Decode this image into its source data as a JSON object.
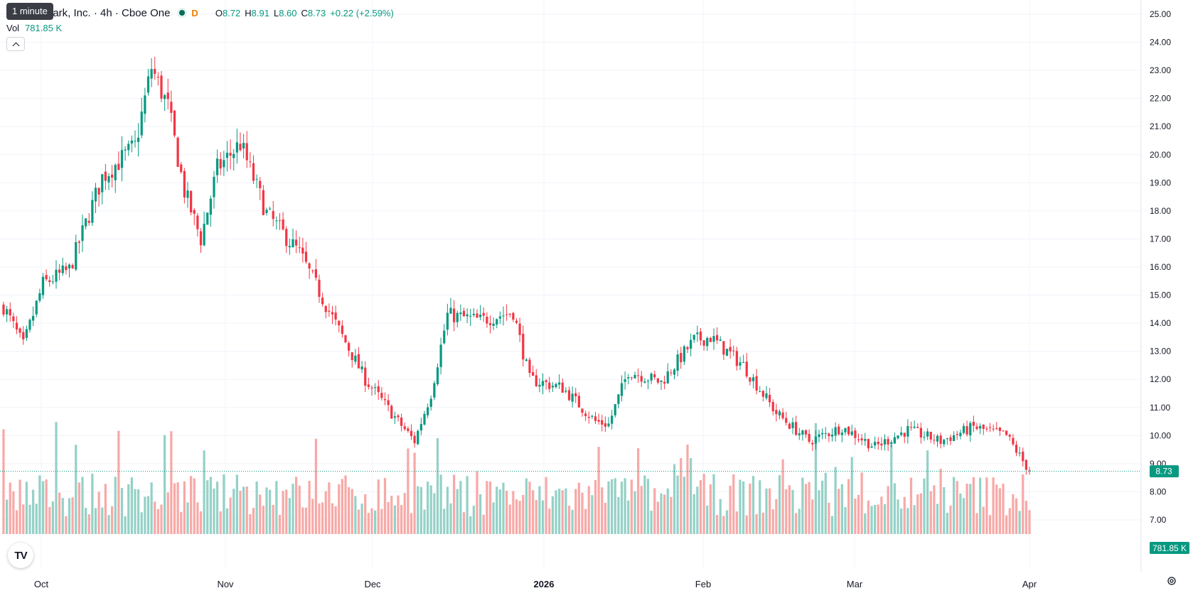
{
  "legend": {
    "title": "park, Inc. · 4h · Cboe One",
    "delay_flag": "D",
    "open_label": "O",
    "open": "8.72",
    "high_label": "H",
    "high": "8.91",
    "low_label": "L",
    "low": "8.60",
    "close_label": "C",
    "close": "8.73",
    "change": "+0.22 (+2.59%)"
  },
  "tooltip": "1 minute",
  "volume": {
    "label": "Vol",
    "value": "781.85 K"
  },
  "colors": {
    "up": "#089981",
    "down": "#f23645",
    "vol_up": "#95d1c7",
    "vol_down": "#f7a9a7"
  },
  "chart_data": {
    "type": "candlestick",
    "y_ticks": [
      "25.00",
      "24.00",
      "23.00",
      "22.00",
      "21.00",
      "20.00",
      "19.00",
      "18.00",
      "17.00",
      "16.00",
      "15.00",
      "14.00",
      "13.00",
      "12.00",
      "11.00",
      "10.00",
      "9.00",
      "8.00",
      "7.00"
    ],
    "x_ticks": [
      "Oct",
      "Nov",
      "Dec",
      "2026",
      "Feb",
      "Mar",
      "Apr"
    ],
    "ylim": [
      7,
      25
    ],
    "last_price": {
      "value": 8.73,
      "label": "8.73"
    },
    "last_volume": {
      "label": "781.85 K"
    },
    "grid": true,
    "keyframes": [
      [
        0,
        14.6
      ],
      [
        6,
        13.2
      ],
      [
        12,
        15.4
      ],
      [
        20,
        15.9
      ],
      [
        30,
        19.2
      ],
      [
        40,
        20.3
      ],
      [
        45,
        23.1
      ],
      [
        50,
        21.7
      ],
      [
        55,
        18.7
      ],
      [
        60,
        17.0
      ],
      [
        65,
        19.5
      ],
      [
        72,
        20.4
      ],
      [
        80,
        17.9
      ],
      [
        90,
        16.5
      ],
      [
        100,
        14.2
      ],
      [
        110,
        12.0
      ],
      [
        120,
        10.5
      ],
      [
        125,
        9.8
      ],
      [
        130,
        11.5
      ],
      [
        135,
        14.3
      ],
      [
        145,
        14.1
      ],
      [
        155,
        14.4
      ],
      [
        160,
        12.0
      ],
      [
        170,
        11.7
      ],
      [
        180,
        10.5
      ],
      [
        184,
        10.4
      ],
      [
        190,
        12.3
      ],
      [
        200,
        11.9
      ],
      [
        210,
        13.4
      ],
      [
        215,
        13.5
      ],
      [
        225,
        12.5
      ],
      [
        235,
        10.8
      ],
      [
        245,
        9.8
      ],
      [
        255,
        10.3
      ],
      [
        265,
        9.6
      ],
      [
        275,
        10.2
      ],
      [
        285,
        9.8
      ],
      [
        295,
        10.3
      ],
      [
        305,
        10.0
      ],
      [
        312,
        8.73
      ]
    ]
  }
}
